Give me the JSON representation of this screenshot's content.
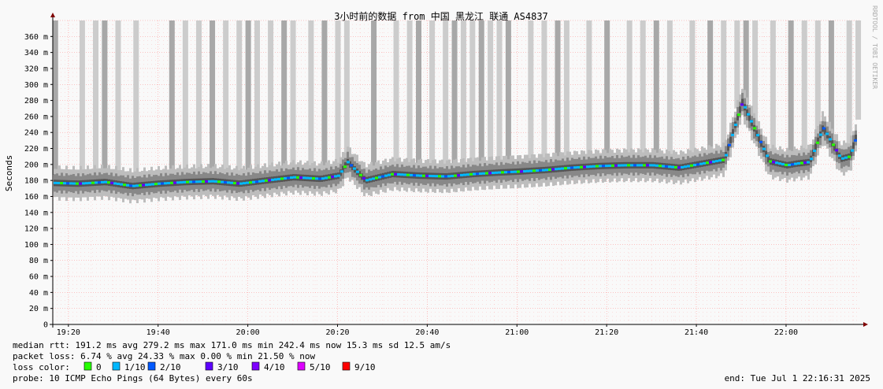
{
  "chart_data": {
    "type": "line",
    "title": "3小时前的数据 from 中国 黑龙江 联通 AS4837",
    "ylabel": "Seconds",
    "watermark": "RRDTOOL / TOBI OETIKER",
    "ylim": [
      0,
      380
    ],
    "grid": true,
    "y_ticks": [
      "0",
      "20 m",
      "40 m",
      "60 m",
      "80 m",
      "100 m",
      "120 m",
      "140 m",
      "160 m",
      "180 m",
      "200 m",
      "220 m",
      "240 m",
      "260 m",
      "280 m",
      "300 m",
      "320 m",
      "340 m",
      "360 m"
    ],
    "x_ticks": [
      "19:20",
      "19:40",
      "20:00",
      "20:20",
      "20:40",
      "21:00",
      "21:20",
      "21:40",
      "22:00"
    ],
    "x_range": [
      "19:16:31",
      "22:16:31"
    ],
    "series": [
      {
        "name": "median rtt",
        "x": [
          "19:16",
          "19:22",
          "19:28",
          "19:34",
          "19:40",
          "19:46",
          "19:52",
          "19:58",
          "20:04",
          "20:10",
          "20:16",
          "20:20",
          "20:22",
          "20:26",
          "20:32",
          "20:38",
          "20:44",
          "20:50",
          "20:56",
          "21:00",
          "21:06",
          "21:12",
          "21:18",
          "21:24",
          "21:30",
          "21:36",
          "21:42",
          "21:46",
          "21:50",
          "21:52",
          "21:56",
          "22:00",
          "22:02",
          "22:05",
          "22:08",
          "22:12",
          "22:14",
          "22:16"
        ],
        "values": [
          177,
          176,
          178,
          173,
          176,
          178,
          179,
          176,
          180,
          184,
          182,
          186,
          203,
          180,
          188,
          186,
          185,
          188,
          190,
          191,
          193,
          196,
          198,
          199,
          199,
          196,
          202,
          206,
          278,
          253,
          204,
          199,
          201,
          203,
          246,
          207,
          210,
          246
        ]
      }
    ],
    "loss_spikes_x": [
      "19:17",
      "19:23",
      "19:26",
      "19:28",
      "19:31",
      "19:35",
      "19:43",
      "19:46",
      "19:49",
      "19:52",
      "19:55",
      "19:58",
      "20:00",
      "20:02",
      "20:05",
      "20:08",
      "20:10",
      "20:14",
      "20:17",
      "20:20",
      "20:22",
      "20:28",
      "20:33",
      "20:36",
      "20:38",
      "20:41",
      "20:44",
      "20:46",
      "20:48",
      "20:50",
      "20:52",
      "20:54",
      "20:56",
      "20:58",
      "21:03",
      "21:06",
      "21:09",
      "21:11",
      "21:16",
      "21:20",
      "21:25",
      "21:28",
      "21:31",
      "21:34",
      "21:39",
      "21:43",
      "21:46",
      "21:49",
      "21:51",
      "21:53",
      "21:57",
      "22:01",
      "22:04",
      "22:07",
      "22:10",
      "22:14",
      "22:16"
    ],
    "summary": {
      "median_rtt": "median rtt:  191.2 ms avg  279.2 ms max  171.0 ms min  242.4 ms now  15.3 ms sd  12.5   am/s",
      "packet_loss": "packet loss: 6.74 % avg  24.33 % max  0.00 % min  21.50 % now",
      "probe": "probe:       10 ICMP Echo Pings (64 Bytes) every 60s",
      "end": "end: Tue Jul  1 22:16:31 2025"
    },
    "loss_legend": {
      "label": "loss color:",
      "items": [
        {
          "label": "0",
          "color": "#26ff00"
        },
        {
          "label": "1/10",
          "color": "#00b8ff"
        },
        {
          "label": "2/10",
          "color": "#0059ff"
        },
        {
          "label": "3/10",
          "color": "#5e00ff"
        },
        {
          "label": "4/10",
          "color": "#7e00ff"
        },
        {
          "label": "5/10",
          "color": "#dd00ff"
        },
        {
          "label": "9/10",
          "color": "#ff0000"
        }
      ]
    },
    "colors": {
      "background": "#f9f9f9",
      "grid": "#ff8080",
      "axis": "#000000",
      "arrow": "#800000",
      "smoke_light": "#cccccc",
      "smoke_dark": "#555555"
    }
  }
}
